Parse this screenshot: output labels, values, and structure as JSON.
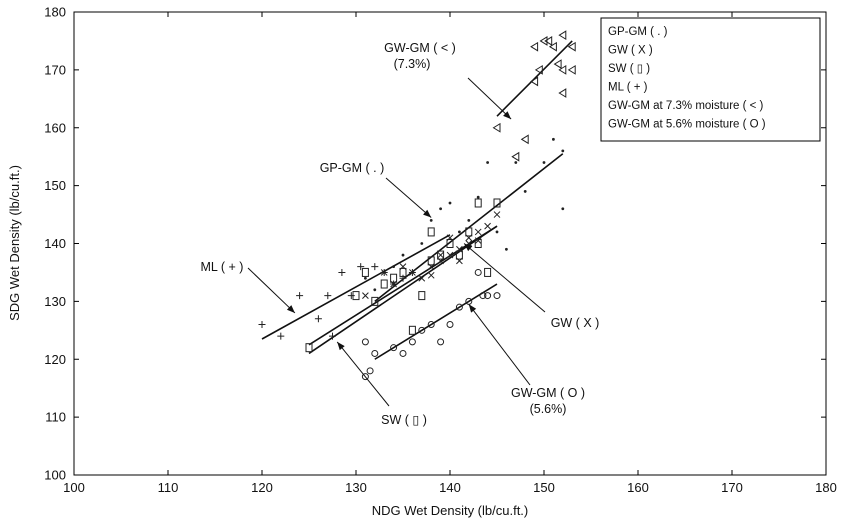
{
  "chart_data": {
    "type": "scatter",
    "xlabel": "NDG Wet Density (lb/cu.ft.)",
    "ylabel": "SDG Wet Density (lb/cu.ft.)",
    "xlim": [
      100,
      180
    ],
    "ylim": [
      100,
      180
    ],
    "x_ticks": [
      100,
      110,
      120,
      130,
      140,
      150,
      160,
      170,
      180
    ],
    "y_ticks": [
      100,
      110,
      120,
      130,
      140,
      150,
      160,
      170,
      180
    ],
    "grid": false,
    "legend_position": "top-right",
    "legend": [
      "GP-GM  ( . )",
      "GW ( X )",
      "SW ( ▯ )",
      "ML  ( + )",
      "GW-GM at 7.3% moisture ( < )",
      "GW-GM at 5.6% moisture ( O )"
    ],
    "series": [
      {
        "name": "GP-GM  ( . )",
        "marker": "dot",
        "points": [
          [
            131,
            134
          ],
          [
            132,
            132
          ],
          [
            134,
            136
          ],
          [
            135,
            138
          ],
          [
            137,
            140
          ],
          [
            138,
            144
          ],
          [
            139,
            146
          ],
          [
            140,
            147
          ],
          [
            141,
            142
          ],
          [
            142,
            144
          ],
          [
            143,
            148
          ],
          [
            144,
            154
          ],
          [
            145,
            142
          ],
          [
            146,
            139
          ],
          [
            147,
            154
          ],
          [
            148,
            149
          ],
          [
            150,
            154
          ],
          [
            151,
            158
          ],
          [
            152,
            146
          ],
          [
            152,
            156
          ]
        ],
        "fit": [
          [
            132,
            130
          ],
          [
            152,
            155.5
          ]
        ]
      },
      {
        "name": "GW ( X )",
        "marker": "x",
        "points": [
          [
            131,
            131
          ],
          [
            133,
            135
          ],
          [
            135,
            136
          ],
          [
            136,
            135
          ],
          [
            137,
            134
          ],
          [
            138,
            136
          ],
          [
            139,
            137
          ],
          [
            140,
            138
          ],
          [
            141,
            139
          ],
          [
            142,
            140
          ],
          [
            143,
            140.5
          ],
          [
            144,
            143
          ],
          [
            145,
            145
          ],
          [
            140,
            141
          ],
          [
            139,
            138
          ],
          [
            142,
            141
          ],
          [
            134,
            133
          ],
          [
            138,
            134.5
          ],
          [
            141,
            137
          ],
          [
            143,
            142
          ]
        ],
        "fit": [
          [
            125,
            122.5
          ],
          [
            145,
            143
          ]
        ]
      },
      {
        "name": "SW ( ▯ )",
        "marker": "rect",
        "points": [
          [
            125,
            122
          ],
          [
            130,
            131
          ],
          [
            131,
            135
          ],
          [
            132,
            130
          ],
          [
            133,
            133
          ],
          [
            134,
            134
          ],
          [
            135,
            135
          ],
          [
            136,
            125
          ],
          [
            137,
            131
          ],
          [
            138,
            137
          ],
          [
            138,
            142
          ],
          [
            139,
            138
          ],
          [
            140,
            140
          ],
          [
            141,
            138
          ],
          [
            142,
            142
          ],
          [
            143,
            140
          ],
          [
            143,
            147
          ],
          [
            144,
            135
          ],
          [
            145,
            147
          ]
        ],
        "fit": [
          [
            125,
            121
          ],
          [
            145,
            143
          ]
        ]
      },
      {
        "name": "ML  ( + )",
        "marker": "plus",
        "points": [
          [
            120,
            126
          ],
          [
            122,
            124
          ],
          [
            124,
            131
          ],
          [
            126,
            127
          ],
          [
            127,
            131
          ],
          [
            127.5,
            124
          ],
          [
            128.5,
            135
          ],
          [
            129.5,
            131
          ],
          [
            130.5,
            136
          ],
          [
            132,
            136
          ],
          [
            133,
            135
          ],
          [
            134,
            133
          ],
          [
            135,
            134
          ],
          [
            136,
            135
          ]
        ],
        "fit": [
          [
            120,
            123.5
          ],
          [
            140,
            141.5
          ]
        ]
      },
      {
        "name": "GW-GM at 7.3% moisture ( < )",
        "marker": "tri-left",
        "points": [
          [
            145,
            160
          ],
          [
            147,
            155
          ],
          [
            148,
            158
          ],
          [
            149,
            168
          ],
          [
            149.5,
            170
          ],
          [
            149,
            174
          ],
          [
            150,
            175
          ],
          [
            150.5,
            175
          ],
          [
            151,
            174
          ],
          [
            151.5,
            171
          ],
          [
            152,
            170
          ],
          [
            152,
            176
          ],
          [
            152,
            166
          ],
          [
            153,
            170
          ],
          [
            153,
            174
          ]
        ],
        "fit": [
          [
            145,
            162
          ],
          [
            153,
            175
          ]
        ]
      },
      {
        "name": "GW-GM at 5.6% moisture ( O )",
        "marker": "circle",
        "points": [
          [
            131,
            117
          ],
          [
            131.5,
            118
          ],
          [
            132,
            121
          ],
          [
            131,
            123
          ],
          [
            134,
            122
          ],
          [
            135,
            121
          ],
          [
            136,
            123
          ],
          [
            137,
            125
          ],
          [
            138,
            126
          ],
          [
            139,
            123
          ],
          [
            140,
            126
          ],
          [
            141,
            129
          ],
          [
            142,
            130
          ],
          [
            143,
            135
          ],
          [
            143.5,
            131
          ],
          [
            144,
            131
          ],
          [
            145,
            131
          ]
        ],
        "fit": [
          [
            132,
            120
          ],
          [
            145,
            133
          ]
        ]
      }
    ],
    "annotations": [
      {
        "text": "GW-GM ( < )",
        "text2": "(7.3%)",
        "target": [
          146.5,
          161.5
        ]
      },
      {
        "text": "GP-GM ( . )",
        "target": [
          138,
          144.5
        ]
      },
      {
        "text": "ML  ( + )",
        "target": [
          123.5,
          128
        ]
      },
      {
        "text": "GW ( X )",
        "target": [
          141.5,
          140
        ]
      },
      {
        "text": "SW ( ▯ )",
        "target": [
          128,
          123
        ]
      },
      {
        "text": "GW-GM  ( O )",
        "text2": "(5.6%)",
        "target": [
          142,
          129.5
        ]
      }
    ]
  }
}
